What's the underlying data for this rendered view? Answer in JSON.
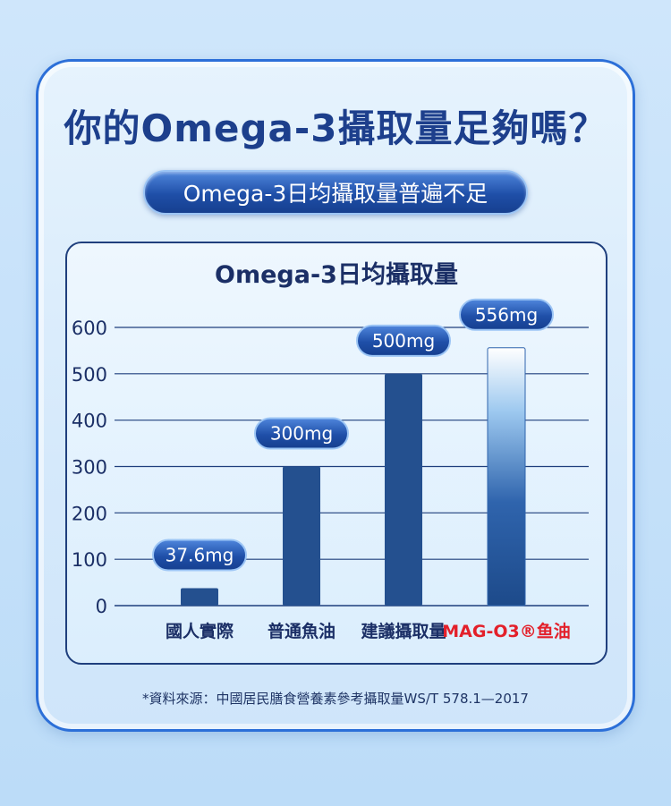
{
  "title": "你的Omega-3攝取量足夠嗎？",
  "subtitle": "Omega-3日均攝取量普遍不足",
  "footnote": "*資料來源：中國居民膳食營養素參考攝取量WS/T 578.1—2017",
  "colors": {
    "bar": "#24508f",
    "highlight_label": "#e3202a",
    "axis_text": "#1b2f66",
    "grid": "#1f3f7d"
  },
  "chart_data": {
    "type": "bar",
    "title": "Omega-3日均攝取量",
    "categories": [
      "國人實際",
      "普通魚油",
      "建議攝取量",
      "MAG-O3®鱼油"
    ],
    "values": [
      37.6,
      300,
      500,
      556
    ],
    "data_labels": [
      "37.6mg",
      "300mg",
      "500mg",
      "556mg"
    ],
    "highlight_category": "MAG-O3®鱼油",
    "ylim": [
      0,
      600
    ],
    "yticks": [
      0,
      100,
      200,
      300,
      400,
      500,
      600
    ],
    "grid": true,
    "legend": "none"
  }
}
